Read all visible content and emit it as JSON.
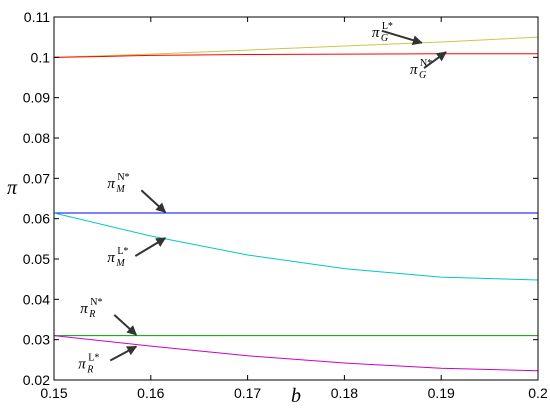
{
  "chart_data": {
    "type": "line",
    "title": "",
    "xlabel": "b",
    "ylabel": "π",
    "xlim": [
      0.15,
      0.2
    ],
    "ylim": [
      0.02,
      0.11
    ],
    "grid": false,
    "x_ticks": [
      0.15,
      0.16,
      0.17,
      0.18,
      0.19,
      0.2
    ],
    "x_tick_labels": [
      "0.15",
      "0.16",
      "0.17",
      "0.18",
      "0.19",
      "0.2"
    ],
    "y_ticks": [
      0.02,
      0.03,
      0.04,
      0.05,
      0.06,
      0.07,
      0.08,
      0.09,
      0.1,
      0.11
    ],
    "y_tick_labels": [
      "0.02",
      "0.03",
      "0.04",
      "0.05",
      "0.06",
      "0.07",
      "0.08",
      "0.09",
      "0.1",
      "0.11"
    ],
    "series": [
      {
        "color": "#c8c84a",
        "x": [
          0.15,
          0.16,
          0.17,
          0.18,
          0.19,
          0.2
        ],
        "y": [
          0.1,
          0.1008,
          0.1018,
          0.1028,
          0.1038,
          0.105
        ]
      },
      {
        "color": "#ff0000",
        "x": [
          0.15,
          0.155,
          0.16,
          0.17,
          0.18,
          0.19,
          0.2
        ],
        "y": [
          0.1,
          0.1002,
          0.1005,
          0.1007,
          0.1008,
          0.1009,
          0.1009
        ]
      },
      {
        "color": "#0000ff",
        "x": [
          0.15,
          0.2
        ],
        "y": [
          0.0614,
          0.0614
        ]
      },
      {
        "color": "#00c8c8",
        "x": [
          0.15,
          0.16,
          0.17,
          0.18,
          0.19,
          0.2
        ],
        "y": [
          0.0614,
          0.0557,
          0.051,
          0.0476,
          0.0455,
          0.0448
        ]
      },
      {
        "color": "#00a000",
        "x": [
          0.15,
          0.2
        ],
        "y": [
          0.031,
          0.031
        ]
      },
      {
        "color": "#cc00cc",
        "x": [
          0.15,
          0.16,
          0.17,
          0.18,
          0.19,
          0.2
        ],
        "y": [
          0.031,
          0.0284,
          0.026,
          0.0242,
          0.0229,
          0.0223
        ]
      }
    ],
    "annotations": [
      {
        "main": "π",
        "sub": "G",
        "sup": "L*",
        "point_x": 0.188,
        "point_y": 0.1036
      },
      {
        "main": "π",
        "sub": "G",
        "sup": "N*",
        "point_x": 0.1905,
        "point_y": 0.1013
      },
      {
        "main": "π",
        "sub": "M",
        "sup": "N*",
        "point_x": 0.1615,
        "point_y": 0.0616
      },
      {
        "main": "π",
        "sub": "M",
        "sup": "L*",
        "point_x": 0.1615,
        "point_y": 0.0552
      },
      {
        "main": "π",
        "sub": "R",
        "sup": "N*",
        "point_x": 0.1585,
        "point_y": 0.0312
      },
      {
        "main": "π",
        "sub": "R",
        "sup": "L*",
        "point_x": 0.1585,
        "point_y": 0.0283
      }
    ]
  }
}
